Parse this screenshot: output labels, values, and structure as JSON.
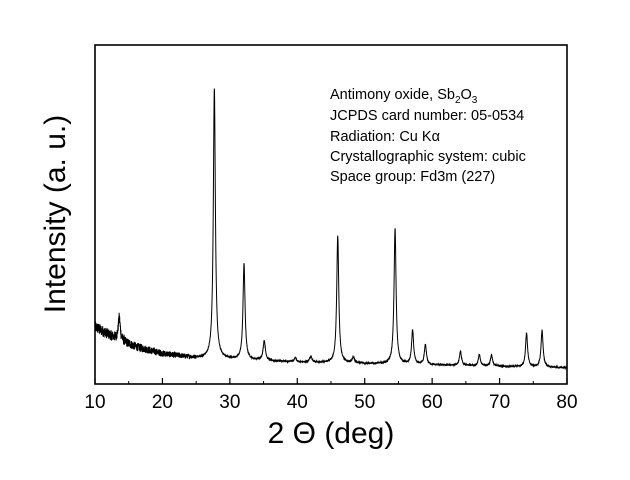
{
  "chart_data": {
    "type": "line",
    "title": "",
    "xlabel": "2 Θ (deg)",
    "ylabel": "Intensity (a. u.)",
    "xlim": [
      10,
      80
    ],
    "x_ticks": [
      10,
      20,
      30,
      40,
      50,
      60,
      70,
      80
    ],
    "y_ticks_shown": false,
    "grid": false,
    "legend": "none",
    "line_color": "#000000",
    "annotation": {
      "line1_text": "Antimony oxide, Sb",
      "line1_sub_a": "2",
      "line1_mid": "O",
      "line1_sub_b": "3",
      "line2": "JCPDS card number: 05-0534",
      "line3_text": "Radiation: Cu K",
      "line3_symbol": "α",
      "line4": "Crystallographic system: cubic",
      "line5": "Space group: Fd3m (227)"
    },
    "background": {
      "points": [
        [
          10,
          0.16
        ],
        [
          13,
          0.12
        ],
        [
          16,
          0.09
        ],
        [
          20,
          0.065
        ],
        [
          25,
          0.05
        ],
        [
          30,
          0.045
        ],
        [
          40,
          0.035
        ],
        [
          50,
          0.03
        ],
        [
          60,
          0.025
        ],
        [
          70,
          0.02
        ],
        [
          80,
          0.015
        ]
      ]
    },
    "peaks": [
      {
        "two_theta": 13.6,
        "intensity": 0.08,
        "width": 0.18
      },
      {
        "two_theta": 27.7,
        "intensity": 0.96,
        "width": 0.18
      },
      {
        "two_theta": 32.1,
        "intensity": 0.34,
        "width": 0.18
      },
      {
        "two_theta": 35.1,
        "intensity": 0.07,
        "width": 0.2
      },
      {
        "two_theta": 39.7,
        "intensity": 0.015,
        "width": 0.2
      },
      {
        "two_theta": 42.0,
        "intensity": 0.02,
        "width": 0.2
      },
      {
        "two_theta": 46.0,
        "intensity": 0.45,
        "width": 0.18
      },
      {
        "two_theta": 48.3,
        "intensity": 0.02,
        "width": 0.2
      },
      {
        "two_theta": 54.5,
        "intensity": 0.48,
        "width": 0.18
      },
      {
        "two_theta": 57.1,
        "intensity": 0.12,
        "width": 0.18
      },
      {
        "two_theta": 59.0,
        "intensity": 0.07,
        "width": 0.18
      },
      {
        "two_theta": 64.2,
        "intensity": 0.05,
        "width": 0.18
      },
      {
        "two_theta": 67.0,
        "intensity": 0.04,
        "width": 0.18
      },
      {
        "two_theta": 68.8,
        "intensity": 0.04,
        "width": 0.18
      },
      {
        "two_theta": 74.0,
        "intensity": 0.12,
        "width": 0.18
      },
      {
        "two_theta": 76.3,
        "intensity": 0.13,
        "width": 0.18
      }
    ]
  }
}
